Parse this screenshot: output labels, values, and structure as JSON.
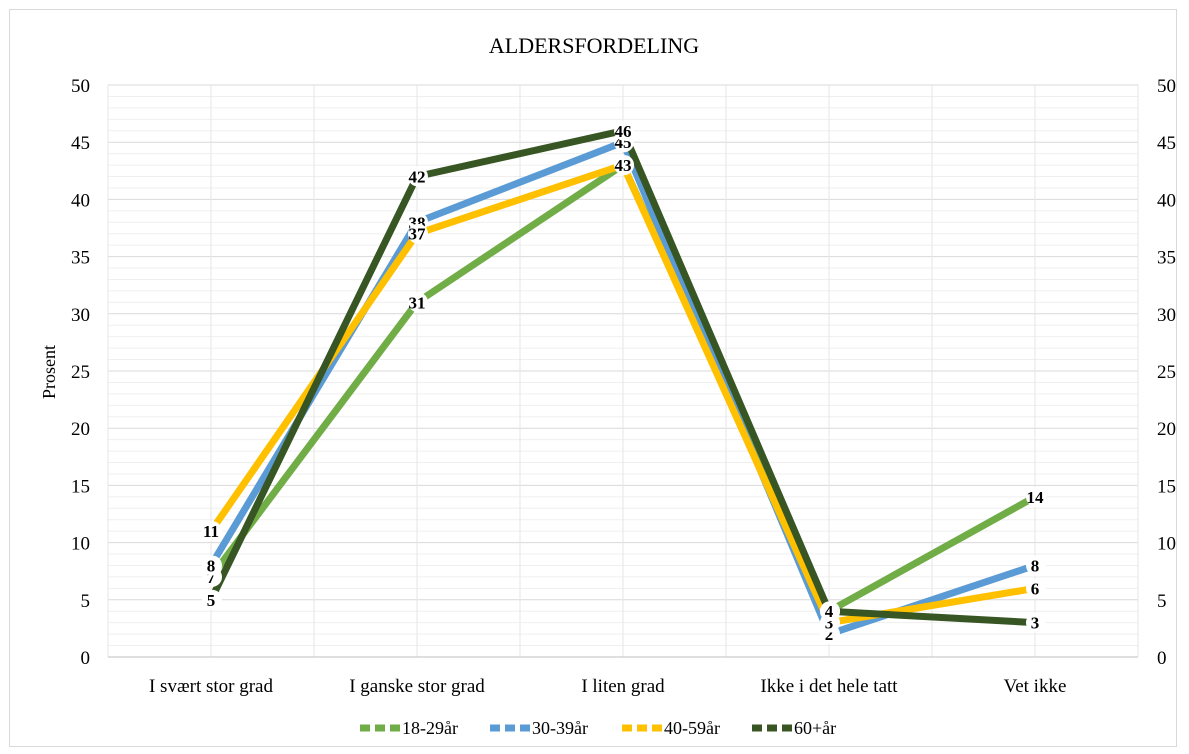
{
  "chart_data": {
    "type": "line",
    "title": "ALDERSFORDELING",
    "ylabel": "Prosent",
    "xlabel": "",
    "ylim": [
      0,
      50
    ],
    "yticks": [
      0,
      5,
      10,
      15,
      20,
      25,
      30,
      35,
      40,
      45,
      50
    ],
    "secondary_axis": true,
    "grid": true,
    "legend": "bottom",
    "categories": [
      "I svært stor grad",
      "I ganske stor grad",
      "I liten grad",
      "Ikke i det hele tatt",
      "Vet ikke"
    ],
    "series": [
      {
        "name": "18-29år",
        "color": "#70ad47",
        "values": [
          7,
          31,
          43,
          4,
          14
        ]
      },
      {
        "name": "30-39år",
        "color": "#5b9bd5",
        "values": [
          8,
          38,
          45,
          2,
          8
        ]
      },
      {
        "name": "40-59år",
        "color": "#ffc000",
        "values": [
          11,
          37,
          43,
          3,
          6
        ]
      },
      {
        "name": "60+år",
        "color": "#375623",
        "values": [
          5,
          42,
          46,
          4,
          3
        ]
      }
    ]
  }
}
